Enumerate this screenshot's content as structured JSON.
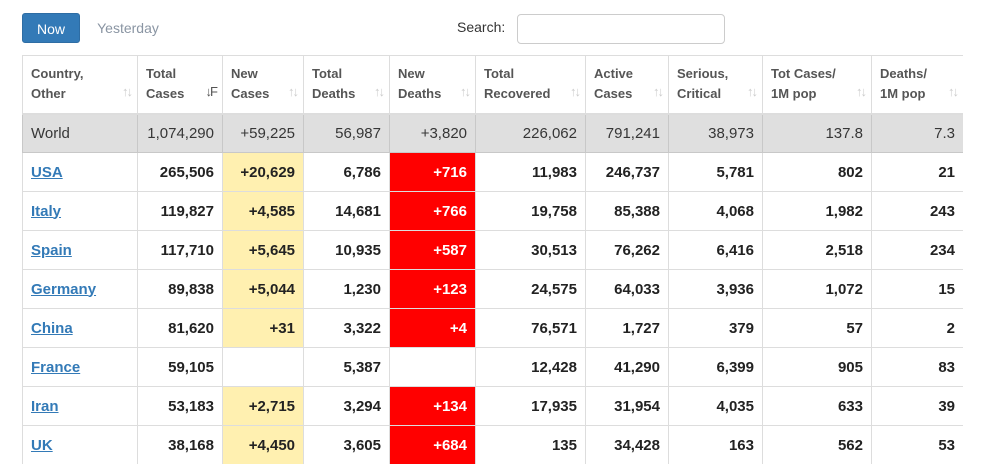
{
  "toolbar": {
    "now_label": "Now",
    "yesterday_label": "Yesterday",
    "search_label": "Search:",
    "search_value": ""
  },
  "table": {
    "headers": [
      {
        "line1": "Country,",
        "line2": "Other",
        "sort": "↑↓"
      },
      {
        "line1": "Total",
        "line2": "Cases",
        "sort": "↓F"
      },
      {
        "line1": "New",
        "line2": "Cases",
        "sort": "↑↓"
      },
      {
        "line1": "Total",
        "line2": "Deaths",
        "sort": "↑↓"
      },
      {
        "line1": "New",
        "line2": "Deaths",
        "sort": "↑↓"
      },
      {
        "line1": "Total",
        "line2": "Recovered",
        "sort": "↑↓"
      },
      {
        "line1": "Active",
        "line2": "Cases",
        "sort": "↑↓"
      },
      {
        "line1": "Serious,",
        "line2": "Critical",
        "sort": "↑↓"
      },
      {
        "line1": "Tot Cases/",
        "line2": "1M pop",
        "sort": "↑↓"
      },
      {
        "line1": "Deaths/",
        "line2": "1M pop",
        "sort": "↑↓"
      }
    ],
    "world": [
      "World",
      "1,074,290",
      "+59,225",
      "56,987",
      "+3,820",
      "226,062",
      "791,241",
      "38,973",
      "137.8",
      "7.3"
    ],
    "rows": [
      [
        "USA",
        "265,506",
        "+20,629",
        "6,786",
        "+716",
        "11,983",
        "246,737",
        "5,781",
        "802",
        "21"
      ],
      [
        "Italy",
        "119,827",
        "+4,585",
        "14,681",
        "+766",
        "19,758",
        "85,388",
        "4,068",
        "1,982",
        "243"
      ],
      [
        "Spain",
        "117,710",
        "+5,645",
        "10,935",
        "+587",
        "30,513",
        "76,262",
        "6,416",
        "2,518",
        "234"
      ],
      [
        "Germany",
        "89,838",
        "+5,044",
        "1,230",
        "+123",
        "24,575",
        "64,033",
        "3,936",
        "1,072",
        "15"
      ],
      [
        "China",
        "81,620",
        "+31",
        "3,322",
        "+4",
        "76,571",
        "1,727",
        "379",
        "57",
        "2"
      ],
      [
        "France",
        "59,105",
        "",
        "5,387",
        "",
        "12,428",
        "41,290",
        "6,399",
        "905",
        "83"
      ],
      [
        "Iran",
        "53,183",
        "+2,715",
        "3,294",
        "+134",
        "17,935",
        "31,954",
        "4,035",
        "633",
        "39"
      ],
      [
        "UK",
        "38,168",
        "+4,450",
        "3,605",
        "+684",
        "135",
        "34,428",
        "163",
        "562",
        "53"
      ]
    ]
  },
  "colors": {
    "primary_button": "#337ab7",
    "new_cases_highlight": "#fff0b0",
    "new_deaths_highlight": "#ff0000",
    "world_row": "#dfdfdf",
    "country_link": "#337ab7"
  }
}
